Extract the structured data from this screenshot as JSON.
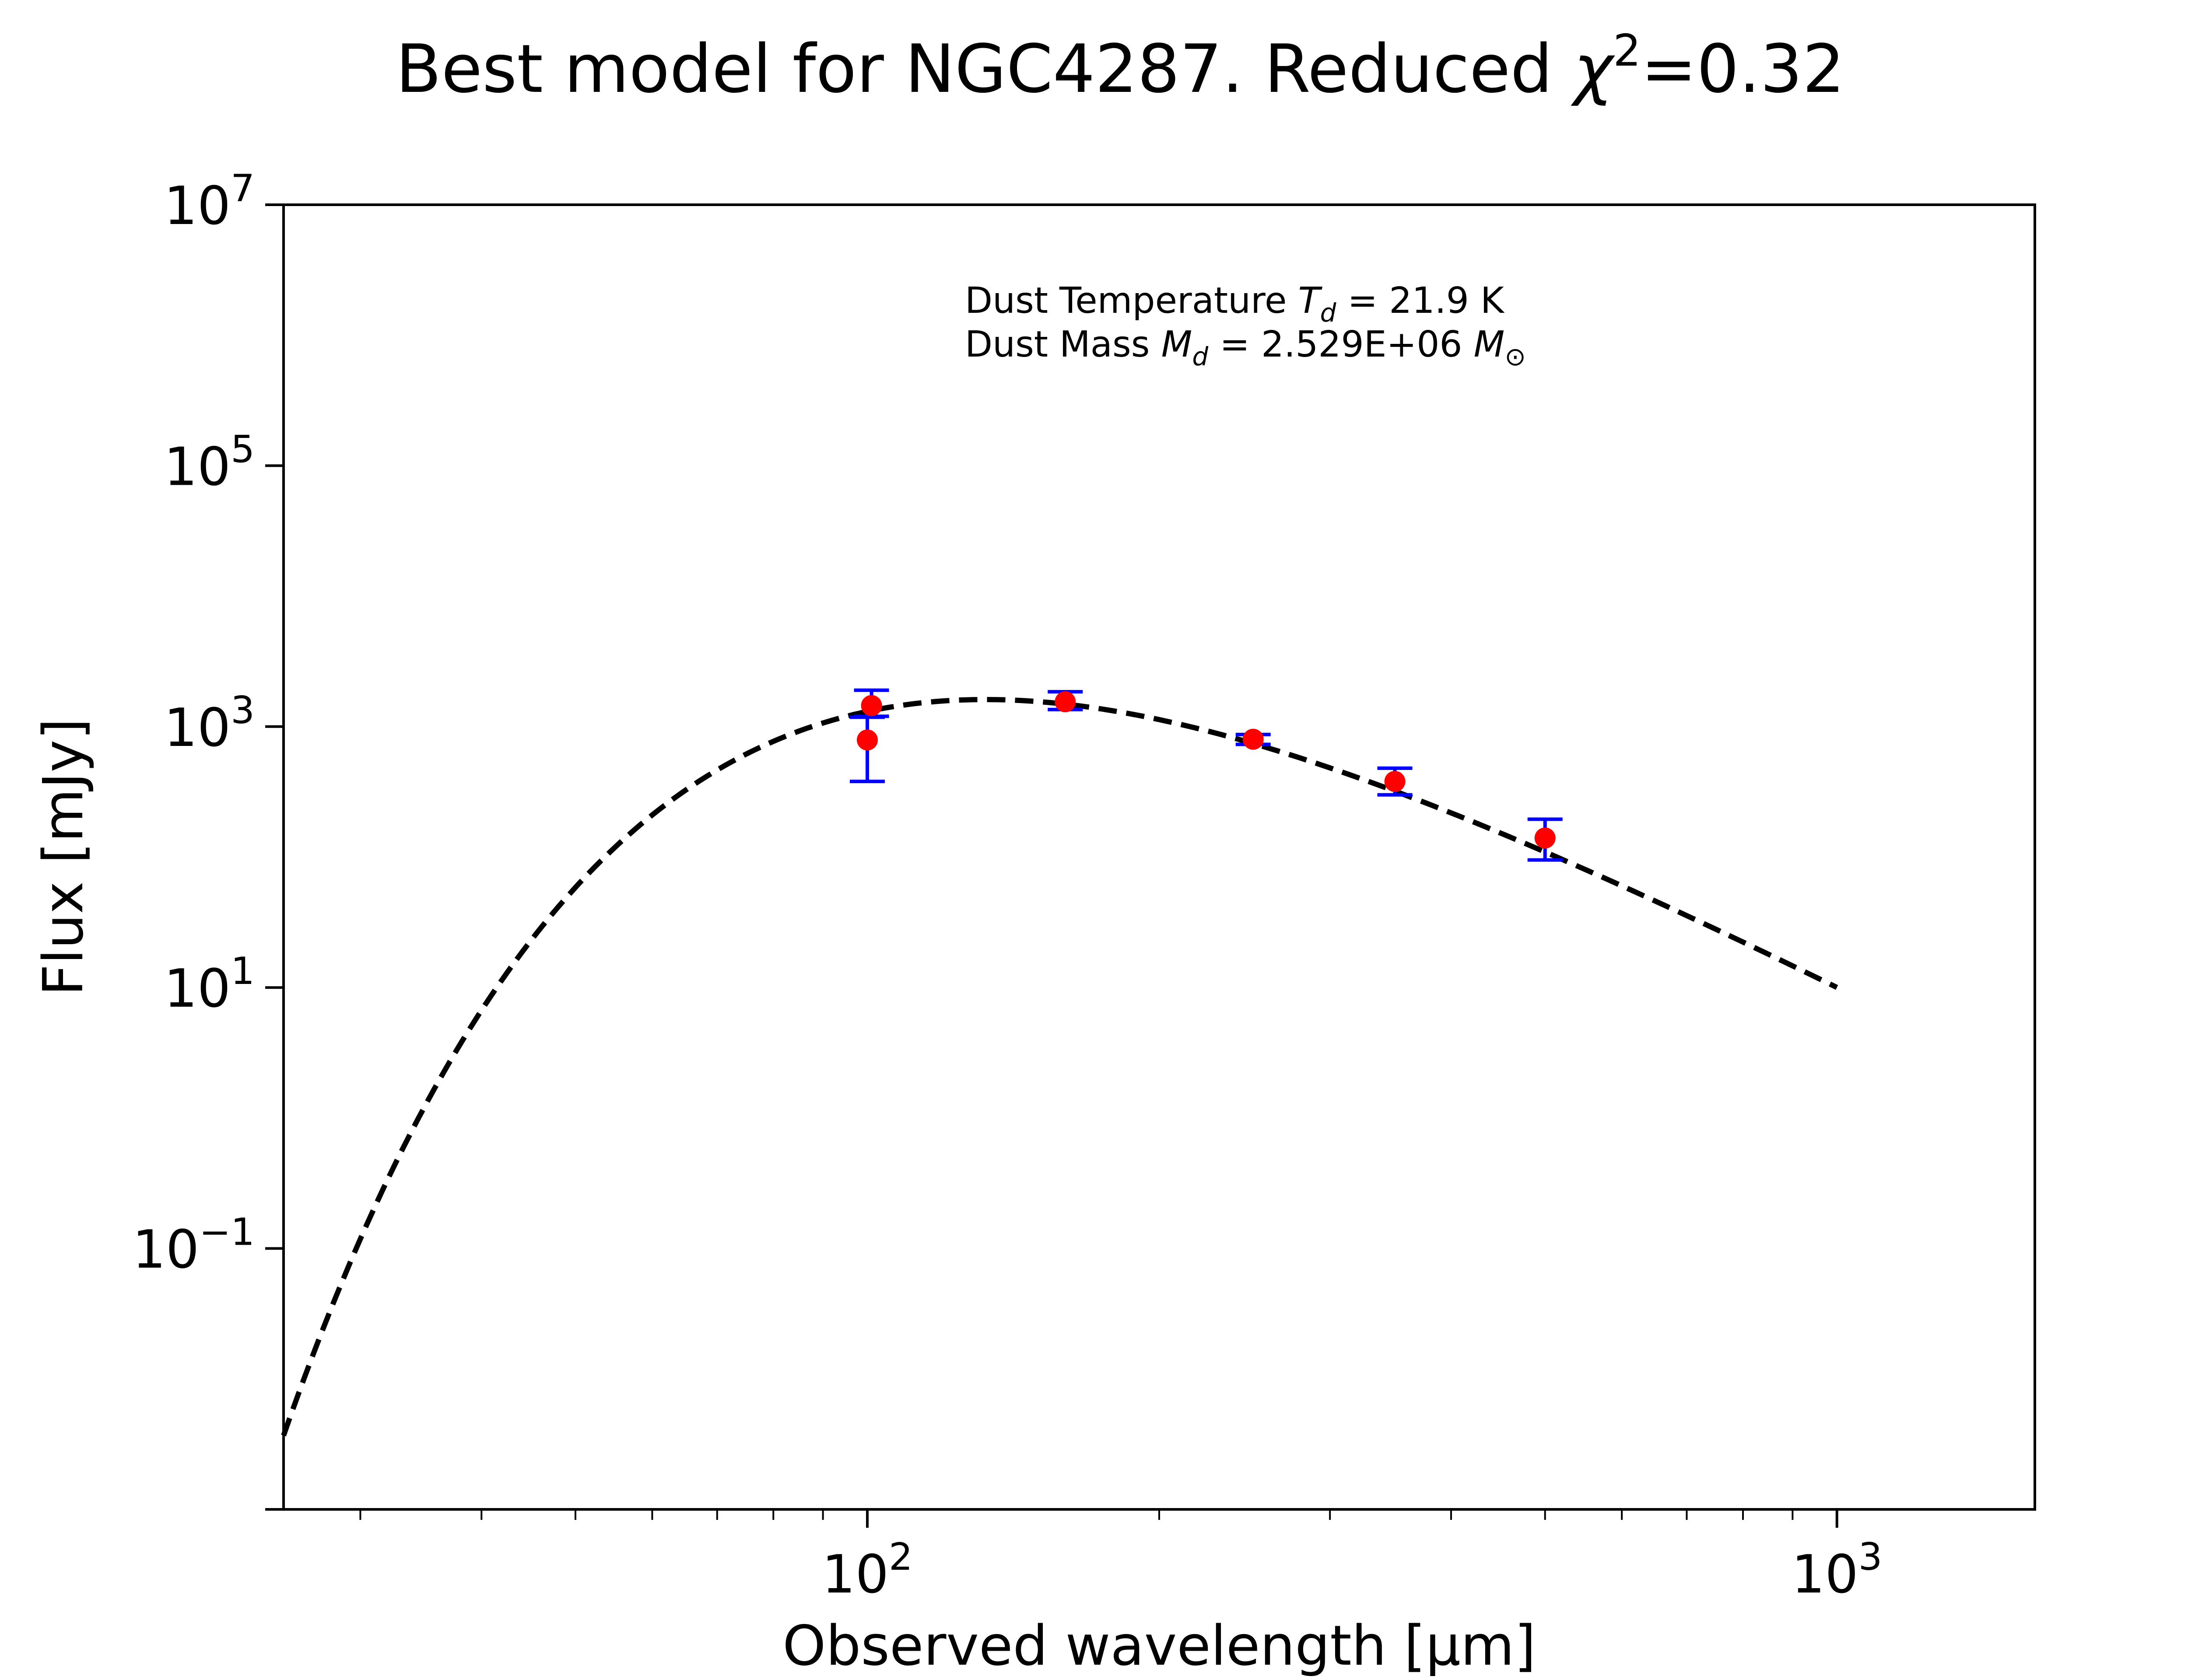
{
  "title": {
    "prefix": "Best model for NGC4287. Reduced ",
    "chi_symbol": "χ",
    "chi_exponent": "2",
    "suffix": "=0.32"
  },
  "annotation": {
    "line1_prefix": "Dust Temperature ",
    "line1_symbol": "T",
    "line1_subscript": "d",
    "line1_suffix": " = 21.9 K",
    "line2_prefix": "Dust Mass ",
    "line2_symbol": "M",
    "line2_subscript": "d",
    "line2_middle": " = 2.529E+06 ",
    "line2_unit_symbol": "M",
    "line2_unit_subscript": "⊙"
  },
  "chart_data": {
    "type": "scatter",
    "xlabel": "Observed wavelength [μm]",
    "ylabel": "Flux [mJy]",
    "xscale": "log",
    "yscale": "log",
    "xlim": [
      25,
      1600
    ],
    "ylim": [
      0.001,
      10000000
    ],
    "x_ticks": [
      {
        "value": 100,
        "base": "10",
        "exp": "2"
      },
      {
        "value": 1000,
        "base": "10",
        "exp": "3"
      }
    ],
    "y_ticks": [
      {
        "value": 0.1,
        "base": "10",
        "exp": "−1"
      },
      {
        "value": 10,
        "base": "10",
        "exp": "1"
      },
      {
        "value": 1000,
        "base": "10",
        "exp": "3"
      },
      {
        "value": 100000,
        "base": "10",
        "exp": "5"
      },
      {
        "value": 10000000,
        "base": "10",
        "exp": "7"
      }
    ],
    "grid": false,
    "series": [
      {
        "style": "dashed-line",
        "color": "#000000",
        "model": {
          "dust_temperature_K": 21.9,
          "dust_mass_Msun": 2529000,
          "peak_wavelength_um": 140,
          "peak_flux_mJy": 1600
        },
        "x_range": [
          25,
          1000
        ]
      },
      {
        "style": "points-with-errorbars",
        "marker_color": "#ff0000",
        "errorbar_color": "#0000ff",
        "points": [
          {
            "x": 100,
            "y": 790,
            "yerr_low": 410,
            "yerr_high": 390
          },
          {
            "x": 101,
            "y": 1450,
            "yerr_low": 250,
            "yerr_high": 450
          },
          {
            "x": 160,
            "y": 1550,
            "yerr_low": 200,
            "yerr_high": 300
          },
          {
            "x": 250,
            "y": 800,
            "yerr_low": 70,
            "yerr_high": 70
          },
          {
            "x": 350,
            "y": 380,
            "yerr_low": 80,
            "yerr_high": 100
          },
          {
            "x": 500,
            "y": 140,
            "yerr_low": 45,
            "yerr_high": 55
          }
        ]
      }
    ]
  }
}
